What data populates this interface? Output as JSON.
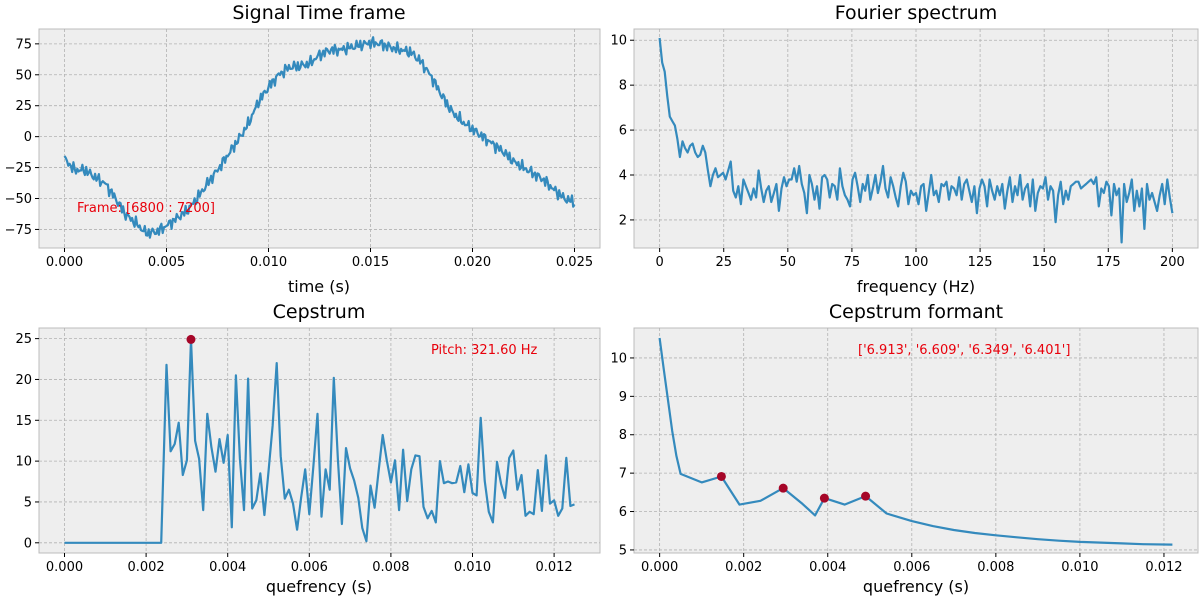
{
  "colors": {
    "line": "#348abd",
    "marker": "#a60628",
    "annotation": "#e8000b",
    "axes_bg": "#eeeeee",
    "grid": "#b2b2b2"
  },
  "chart_data": [
    {
      "id": "signal",
      "type": "line",
      "title": "Signal Time frame",
      "xlabel": "time (s)",
      "ylabel": "",
      "xlim": [
        -0.00125,
        0.02625
      ],
      "ylim": [
        -90,
        87
      ],
      "xticks": [
        0.0,
        0.005,
        0.01,
        0.015,
        0.02,
        0.025
      ],
      "xtick_labels": [
        "0.000",
        "0.005",
        "0.010",
        "0.015",
        "0.020",
        "0.025"
      ],
      "yticks": [
        -75,
        -50,
        -25,
        0,
        25,
        50,
        75
      ],
      "ytick_labels": [
        "−75",
        "−50",
        "−25",
        "0",
        "25",
        "50",
        "75"
      ],
      "grid": true,
      "annotation": "Frame: [6800 : 7200]",
      "anchors": {
        "x": [
          0.0,
          0.0005,
          0.001,
          0.0015,
          0.002,
          0.0025,
          0.003,
          0.0035,
          0.004,
          0.0045,
          0.005,
          0.0055,
          0.006,
          0.0065,
          0.007,
          0.0075,
          0.008,
          0.0085,
          0.009,
          0.0095,
          0.01,
          0.0105,
          0.011,
          0.0115,
          0.012,
          0.0125,
          0.013,
          0.0135,
          0.014,
          0.0145,
          0.015,
          0.0155,
          0.016,
          0.0165,
          0.017,
          0.0175,
          0.018,
          0.0185,
          0.019,
          0.0195,
          0.02,
          0.0205,
          0.021,
          0.0215,
          0.022,
          0.0225,
          0.023,
          0.0235,
          0.024,
          0.0245,
          0.025
        ],
        "y": [
          -18,
          -27,
          -27,
          -33,
          -38,
          -50,
          -63,
          -70,
          -78,
          -77,
          -72,
          -66,
          -60,
          -50,
          -38,
          -27,
          -15,
          -3,
          10,
          28,
          40,
          50,
          56,
          57,
          59,
          66,
          70,
          70,
          72,
          74,
          76,
          75,
          72,
          70,
          68,
          60,
          48,
          33,
          20,
          12,
          6,
          0,
          -6,
          -12,
          -20,
          -25,
          -30,
          -35,
          -43,
          -50,
          -53
        ]
      },
      "samples": 400
    },
    {
      "id": "spectrum",
      "type": "line",
      "title": "Fourier spectrum",
      "xlabel": "frequency (Hz)",
      "ylabel": "",
      "xlim": [
        -10,
        210
      ],
      "ylim": [
        0.75,
        10.5
      ],
      "xticks": [
        0,
        25,
        50,
        75,
        100,
        125,
        150,
        175,
        200
      ],
      "xtick_labels": [
        "0",
        "25",
        "50",
        "75",
        "100",
        "125",
        "150",
        "175",
        "200"
      ],
      "yticks": [
        2,
        4,
        6,
        8,
        10
      ],
      "ytick_labels": [
        "2",
        "4",
        "6",
        "8",
        "10"
      ],
      "grid": true,
      "x_start": 0,
      "x_end": 200,
      "y": [
        10.1,
        9.0,
        8.6,
        7.5,
        6.6,
        6.4,
        6.2,
        5.6,
        4.8,
        5.5,
        5.2,
        5.0,
        5.3,
        5.4,
        5.0,
        4.8,
        4.9,
        5.3,
        5.0,
        4.2,
        3.5,
        4.0,
        4.3,
        3.9,
        4.0,
        4.1,
        3.8,
        4.2,
        4.6,
        3.3,
        3.0,
        3.5,
        2.7,
        3.8,
        3.5,
        3.2,
        2.9,
        3.4,
        3.0,
        4.2,
        3.4,
        2.8,
        3.3,
        3.5,
        2.8,
        3.2,
        3.6,
        2.4,
        3.4,
        3.9,
        3.5,
        3.8,
        3.8,
        4.3,
        3.7,
        4.4,
        3.6,
        3.2,
        2.3,
        4.0,
        3.6,
        2.9,
        3.5,
        2.5,
        3.9,
        4.0,
        3.8,
        3.0,
        3.6,
        3.5,
        2.9,
        4.3,
        3.5,
        3.1,
        2.9,
        2.6,
        3.8,
        4.1,
        3.5,
        2.8,
        3.6,
        3.3,
        4.0,
        2.9,
        3.4,
        4.0,
        3.2,
        3.7,
        4.4,
        3.4,
        3.0,
        3.9,
        3.5,
        3.0,
        2.6,
        3.5,
        4.1,
        3.7,
        2.7,
        3.3,
        3.1,
        3.2,
        2.7,
        3.5,
        3.6,
        2.4,
        3.2,
        4.0,
        3.1,
        3.3,
        2.8,
        3.6,
        3.5,
        3.7,
        2.9,
        3.5,
        3.4,
        3.1,
        3.9,
        2.9,
        3.6,
        3.8,
        3.3,
        2.8,
        3.5,
        2.3,
        3.4,
        3.8,
        3.5,
        2.6,
        3.8,
        3.3,
        2.9,
        3.5,
        3.1,
        3.6,
        2.5,
        3.3,
        3.9,
        2.8,
        3.5,
        3.1,
        4.0,
        2.9,
        3.4,
        3.6,
        2.6,
        3.8,
        2.4,
        3.2,
        3.5,
        3.4,
        3.9,
        2.9,
        3.5,
        3.3,
        1.9,
        3.1,
        3.7,
        2.7,
        3.3,
        2.9,
        3.5,
        3.6,
        3.7,
        3.7,
        3.4,
        3.5,
        3.6,
        3.7,
        3.8,
        3.6,
        3.9,
        2.6,
        3.4,
        3.2,
        3.7,
        3.5,
        2.2,
        3.6,
        3.1,
        3.4,
        1.0,
        3.6,
        2.8,
        3.2,
        3.8,
        2.4,
        3.3,
        2.6,
        3.4,
        1.6,
        3.6,
        2.9,
        3.2,
        2.8,
        2.4,
        3.1,
        3.6,
        2.7,
        3.8,
        3.0,
        2.3
      ]
    },
    {
      "id": "cepstrum",
      "type": "line",
      "title": "Cepstrum",
      "xlabel": "quefrency (s)",
      "ylabel": "",
      "xlim": [
        -0.000625,
        0.013125
      ],
      "ylim": [
        -1.25,
        26.3
      ],
      "xticks": [
        0.0,
        0.002,
        0.004,
        0.006,
        0.008,
        0.01,
        0.012
      ],
      "xtick_labels": [
        "0.000",
        "0.002",
        "0.004",
        "0.006",
        "0.008",
        "0.010",
        "0.012"
      ],
      "yticks": [
        0,
        5,
        10,
        15,
        20,
        25
      ],
      "ytick_labels": [
        "0",
        "5",
        "10",
        "15",
        "20",
        "25"
      ],
      "grid": true,
      "annotation": "Pitch: 321.60 Hz",
      "peak": {
        "x": 0.0031,
        "y": 24.9
      },
      "x": [
        0.0,
        0.0023,
        0.00237,
        0.0025,
        0.0026,
        0.0027,
        0.0028,
        0.0029,
        0.003,
        0.0031,
        0.0032,
        0.0033,
        0.0034,
        0.0035,
        0.0036,
        0.0037,
        0.0038,
        0.0039,
        0.004,
        0.0041,
        0.0042,
        0.0043,
        0.0044,
        0.0045,
        0.0046,
        0.0047,
        0.0048,
        0.0049,
        0.005,
        0.0051,
        0.0052,
        0.0053,
        0.0054,
        0.0055,
        0.0056,
        0.0057,
        0.0058,
        0.0059,
        0.006,
        0.0061,
        0.0062,
        0.0063,
        0.0064,
        0.0065,
        0.0066,
        0.0067,
        0.0068,
        0.0069,
        0.007,
        0.0071,
        0.0072,
        0.0073,
        0.0074,
        0.0075,
        0.0076,
        0.0077,
        0.0078,
        0.0079,
        0.008,
        0.0081,
        0.0082,
        0.0083,
        0.0084,
        0.0085,
        0.0086,
        0.0087,
        0.0088,
        0.0089,
        0.009,
        0.0091,
        0.0092,
        0.0093,
        0.0094,
        0.0095,
        0.0096,
        0.0097,
        0.0098,
        0.0099,
        0.01,
        0.0101,
        0.0102,
        0.0103,
        0.0104,
        0.0105,
        0.0106,
        0.0107,
        0.0108,
        0.0109,
        0.011,
        0.0111,
        0.0112,
        0.0113,
        0.0114,
        0.0115,
        0.0116,
        0.0117,
        0.0118,
        0.0119,
        0.012,
        0.0121,
        0.0122,
        0.0123,
        0.0124,
        0.0125
      ],
      "y": [
        0,
        0,
        0,
        21.8,
        11.2,
        12.1,
        14.7,
        8.3,
        10.1,
        24.9,
        12.5,
        10.3,
        4.0,
        15.8,
        11.7,
        8.7,
        12.7,
        9.8,
        13.2,
        1.9,
        20.5,
        10.3,
        4.0,
        20.1,
        4.2,
        5.2,
        8.5,
        3.4,
        8.7,
        14.3,
        22.0,
        10.6,
        5.4,
        6.5,
        4.8,
        1.6,
        5.5,
        9.0,
        3.5,
        9.4,
        15.8,
        3.2,
        9.0,
        6.5,
        20.2,
        10.2,
        2.3,
        11.6,
        9.1,
        7.6,
        5.5,
        1.8,
        0.2,
        7.0,
        4.3,
        8.9,
        13.2,
        10.1,
        7.4,
        10.1,
        4.0,
        11.4,
        5.1,
        9.0,
        10.7,
        10.6,
        4.4,
        3.0,
        3.9,
        2.5,
        10.0,
        7.3,
        7.5,
        7.3,
        7.4,
        9.4,
        6.2,
        9.6,
        6.1,
        5.8,
        15.3,
        7.6,
        3.8,
        2.5,
        9.9,
        7.2,
        5.5,
        10.4,
        11.3,
        6.5,
        8.3,
        3.3,
        3.8,
        3.5,
        8.9,
        3.9,
        10.7,
        4.8,
        5.2,
        3.3,
        4.2,
        10.4,
        4.5,
        4.7
      ]
    },
    {
      "id": "formant",
      "type": "line",
      "title": "Cepstrum formant",
      "xlabel": "quefrency (s)",
      "ylabel": "",
      "xlim": [
        -0.00061,
        0.01281
      ],
      "ylim": [
        4.92,
        10.78
      ],
      "xticks": [
        0.0,
        0.002,
        0.004,
        0.006,
        0.008,
        0.01,
        0.012
      ],
      "xtick_labels": [
        "0.000",
        "0.002",
        "0.004",
        "0.006",
        "0.008",
        "0.010",
        "0.012"
      ],
      "yticks": [
        5,
        6,
        7,
        8,
        9,
        10
      ],
      "ytick_labels": [
        "5",
        "6",
        "7",
        "8",
        "9",
        "10"
      ],
      "grid": true,
      "annotation": "['6.913', '6.609', '6.349', '6.401']",
      "peaks": {
        "x": [
          0.00147,
          0.00294,
          0.00392,
          0.0049
        ],
        "y": [
          6.913,
          6.609,
          6.349,
          6.401
        ]
      },
      "x": [
        0.0,
        0.0001,
        0.0002,
        0.0003,
        0.0004,
        0.0005,
        0.001,
        0.00147,
        0.0019,
        0.0024,
        0.00294,
        0.0034,
        0.0037,
        0.00392,
        0.0044,
        0.0049,
        0.0054,
        0.006,
        0.0065,
        0.007,
        0.0075,
        0.008,
        0.0085,
        0.009,
        0.0095,
        0.01,
        0.0105,
        0.011,
        0.0115,
        0.0122
      ],
      "y": [
        10.52,
        9.7,
        8.9,
        8.1,
        7.45,
        6.98,
        6.76,
        6.913,
        6.18,
        6.28,
        6.609,
        6.2,
        5.9,
        6.349,
        6.18,
        6.401,
        5.95,
        5.75,
        5.62,
        5.52,
        5.44,
        5.38,
        5.33,
        5.28,
        5.24,
        5.21,
        5.19,
        5.17,
        5.15,
        5.14
      ]
    }
  ]
}
